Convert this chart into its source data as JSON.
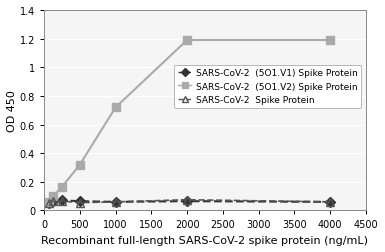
{
  "title": "",
  "xlabel": "Recombinant full-length SARS-CoV-2 spike protein (ng/mL)",
  "ylabel": "OD 450",
  "xlim": [
    0,
    4500
  ],
  "ylim": [
    0,
    1.4
  ],
  "xticks": [
    0,
    500,
    1000,
    1500,
    2000,
    2500,
    3000,
    3500,
    4000,
    4500
  ],
  "yticks": [
    0,
    0.2,
    0.4,
    0.6,
    0.8,
    1.0,
    1.2,
    1.4
  ],
  "series": [
    {
      "label": "SARS-CoV-2  (5O1.V1) Spike Protein",
      "x": [
        62.5,
        125,
        250,
        500,
        1000,
        2000,
        4000
      ],
      "y": [
        0.055,
        0.065,
        0.07,
        0.065,
        0.06,
        0.065,
        0.06
      ],
      "color": "#333333",
      "marker": "D",
      "markersize": 5,
      "linestyle": "--",
      "linewidth": 1.5,
      "fillstyle": "full"
    },
    {
      "label": "SARS-CoV-2  (5O1.V2) Spike Protein",
      "x": [
        62.5,
        125,
        250,
        500,
        1000,
        2000,
        4000
      ],
      "y": [
        0.06,
        0.1,
        0.165,
        0.32,
        0.72,
        1.19,
        1.19
      ],
      "color": "#aaaaaa",
      "marker": "s",
      "markersize": 6,
      "linestyle": "-",
      "linewidth": 1.5,
      "fillstyle": "full"
    },
    {
      "label": "SARS-CoV-2  Spike Protein",
      "x": [
        62.5,
        125,
        250,
        500,
        1000,
        2000,
        4000
      ],
      "y": [
        0.055,
        0.065,
        0.065,
        0.055,
        0.06,
        0.075,
        0.06
      ],
      "color": "#555555",
      "marker": "^",
      "markersize": 6,
      "linestyle": "--",
      "linewidth": 1.2,
      "fillstyle": "none"
    }
  ],
  "legend_fontsize": 6.5,
  "axis_fontsize": 8,
  "tick_fontsize": 7,
  "background_color": "#f5f5f5"
}
